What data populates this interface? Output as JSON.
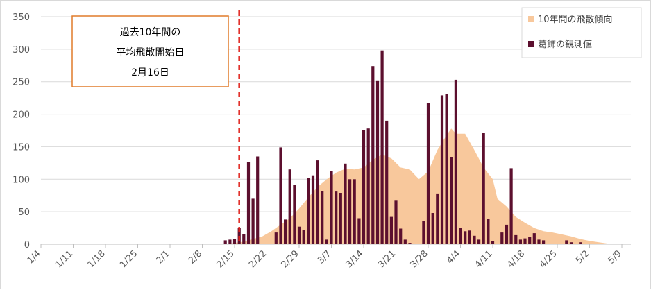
{
  "chart_data": {
    "type": "bar",
    "y_ticks": [
      0,
      50,
      100,
      150,
      200,
      250,
      300,
      350
    ],
    "ylim": [
      0,
      350
    ],
    "x_tick_labels": [
      "1/4",
      "1/11",
      "1/18",
      "1/25",
      "2/1",
      "2/8",
      "2/15",
      "2/22",
      "2/29",
      "3/7",
      "3/14",
      "3/21",
      "3/28",
      "4/4",
      "4/11",
      "4/18",
      "4/25",
      "5/2",
      "5/9"
    ],
    "grid": true,
    "legend_position": "top-right",
    "legend": {
      "area_label": "10年間の飛散傾向",
      "bar_label": "葛飾の観測値"
    },
    "annotation": {
      "lines": [
        "過去10年間の",
        "平均飛散開始日",
        "2月16日"
      ],
      "marker_day": 43.5
    },
    "series": [
      {
        "name": "葛飾の観測値",
        "type": "bar",
        "color": "#5c0f2e",
        "points": [
          [
            40,
            6
          ],
          [
            41,
            7
          ],
          [
            42,
            8
          ],
          [
            43,
            25
          ],
          [
            44,
            15
          ],
          [
            45,
            127
          ],
          [
            46,
            70
          ],
          [
            47,
            135
          ],
          [
            51,
            18
          ],
          [
            52,
            149
          ],
          [
            53,
            38
          ],
          [
            54,
            115
          ],
          [
            55,
            91
          ],
          [
            56,
            27
          ],
          [
            57,
            22
          ],
          [
            58,
            102
          ],
          [
            59,
            106
          ],
          [
            60,
            129
          ],
          [
            61,
            82
          ],
          [
            62,
            7
          ],
          [
            63,
            113
          ],
          [
            64,
            81
          ],
          [
            65,
            79
          ],
          [
            66,
            124
          ],
          [
            67,
            100
          ],
          [
            68,
            100
          ],
          [
            69,
            40
          ],
          [
            70,
            176
          ],
          [
            71,
            178
          ],
          [
            72,
            274
          ],
          [
            73,
            251
          ],
          [
            74,
            298
          ],
          [
            75,
            190
          ],
          [
            76,
            42
          ],
          [
            77,
            68
          ],
          [
            78,
            24
          ],
          [
            79,
            7
          ],
          [
            80,
            2
          ],
          [
            83,
            36
          ],
          [
            84,
            217
          ],
          [
            85,
            48
          ],
          [
            86,
            78
          ],
          [
            87,
            229
          ],
          [
            88,
            231
          ],
          [
            89,
            134
          ],
          [
            90,
            253
          ],
          [
            91,
            25
          ],
          [
            92,
            20
          ],
          [
            93,
            21
          ],
          [
            94,
            13
          ],
          [
            95,
            7
          ],
          [
            96,
            171
          ],
          [
            97,
            39
          ],
          [
            98,
            5
          ],
          [
            100,
            18
          ],
          [
            101,
            30
          ],
          [
            102,
            117
          ],
          [
            103,
            14
          ],
          [
            104,
            7
          ],
          [
            105,
            9
          ],
          [
            106,
            11
          ],
          [
            107,
            17
          ],
          [
            108,
            7
          ],
          [
            109,
            6
          ],
          [
            114,
            6
          ],
          [
            115,
            3
          ],
          [
            117,
            3
          ]
        ]
      },
      {
        "name": "10年間の飛散傾向",
        "type": "area",
        "color": "#f8c89c",
        "points": [
          [
            40,
            0
          ],
          [
            42,
            2
          ],
          [
            44,
            4
          ],
          [
            46,
            8
          ],
          [
            48,
            12
          ],
          [
            50,
            20
          ],
          [
            52,
            30
          ],
          [
            54,
            40
          ],
          [
            56,
            55
          ],
          [
            58,
            72
          ],
          [
            60,
            88
          ],
          [
            62,
            100
          ],
          [
            64,
            110
          ],
          [
            66,
            116
          ],
          [
            68,
            115
          ],
          [
            70,
            118
          ],
          [
            72,
            130
          ],
          [
            74,
            138
          ],
          [
            76,
            132
          ],
          [
            78,
            118
          ],
          [
            80,
            115
          ],
          [
            82,
            100
          ],
          [
            84,
            112
          ],
          [
            86,
            145
          ],
          [
            88,
            168
          ],
          [
            89,
            178
          ],
          [
            90,
            170
          ],
          [
            92,
            170
          ],
          [
            94,
            145
          ],
          [
            96,
            118
          ],
          [
            98,
            100
          ],
          [
            99,
            70
          ],
          [
            101,
            58
          ],
          [
            103,
            42
          ],
          [
            105,
            33
          ],
          [
            107,
            25
          ],
          [
            109,
            20
          ],
          [
            111,
            18
          ],
          [
            113,
            15
          ],
          [
            115,
            12
          ],
          [
            117,
            8
          ],
          [
            119,
            5
          ],
          [
            121,
            3
          ],
          [
            123,
            1
          ],
          [
            125,
            0
          ]
        ]
      }
    ]
  }
}
